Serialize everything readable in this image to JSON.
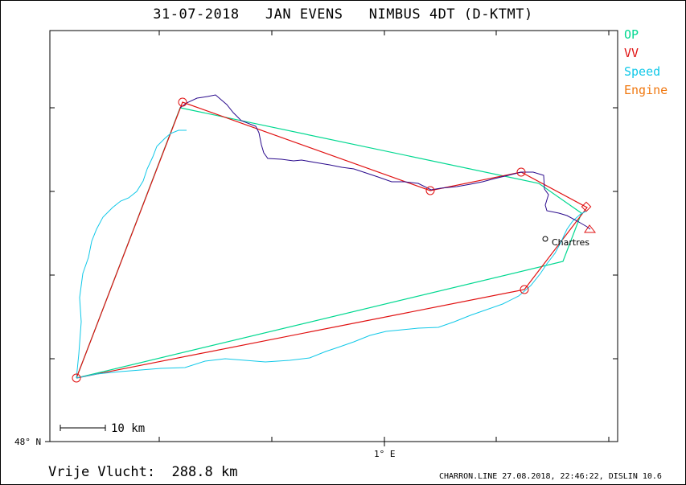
{
  "title": {
    "date": "31-07-2018",
    "pilot": "JAN EVENS",
    "glider": "NIMBUS 4DT (D-KTMT)"
  },
  "legend": [
    {
      "label": "OP",
      "color": "#00d890"
    },
    {
      "label": "VV",
      "color": "#e01010"
    },
    {
      "label": "Speed",
      "color": "#10c8e8"
    },
    {
      "label": "Engine",
      "color": "#f07810"
    }
  ],
  "axes": {
    "lat_label": "48° N",
    "lon_label": "1° E"
  },
  "scale_bar": {
    "label": "10 km"
  },
  "place": {
    "name": "Chartres"
  },
  "footer": {
    "label": "Vrije Vlucht:",
    "distance": "288.8 km"
  },
  "credit": "CHARRON.LINE 27.08.2018, 22:46:22, DISLIN 10.6",
  "colors": {
    "track_climb": "#10c8e8",
    "track_cruise": "#2a0a8c",
    "route_op": "#00d890",
    "route_vv": "#e01010",
    "engine": "#f07810"
  }
}
